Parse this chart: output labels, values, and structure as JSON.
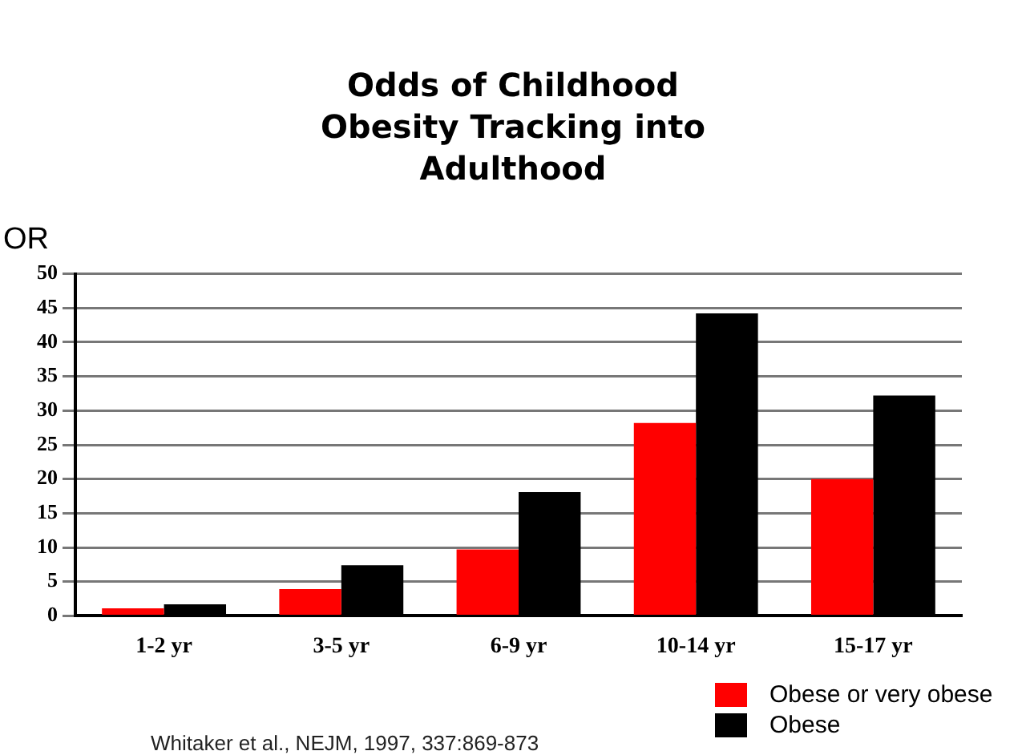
{
  "chart_data": {
    "type": "bar",
    "title": "Odds of Childhood Obesity Tracking into Adulthood",
    "ylabel": "OR",
    "categories": [
      "1-2 yr",
      "3-5 yr",
      "6-9 yr",
      "10-14 yr",
      "15-17 yr"
    ],
    "series": [
      {
        "name": "Obese or very obese",
        "color": "#ff0000",
        "values": [
          1.1,
          3.9,
          9.7,
          28.2,
          20
        ]
      },
      {
        "name": "Obese",
        "color": "#000000",
        "values": [
          1.7,
          7.4,
          18.1,
          44.2,
          32.2
        ]
      }
    ],
    "ylim": [
      0,
      50
    ],
    "yticks": [
      0,
      5,
      10,
      15,
      20,
      25,
      30,
      35,
      40,
      45,
      50
    ],
    "grid": "y",
    "legend": "bottom right",
    "annotations": [
      "Whitaker et al., NEJM, 1997, 337:869-873"
    ]
  }
}
